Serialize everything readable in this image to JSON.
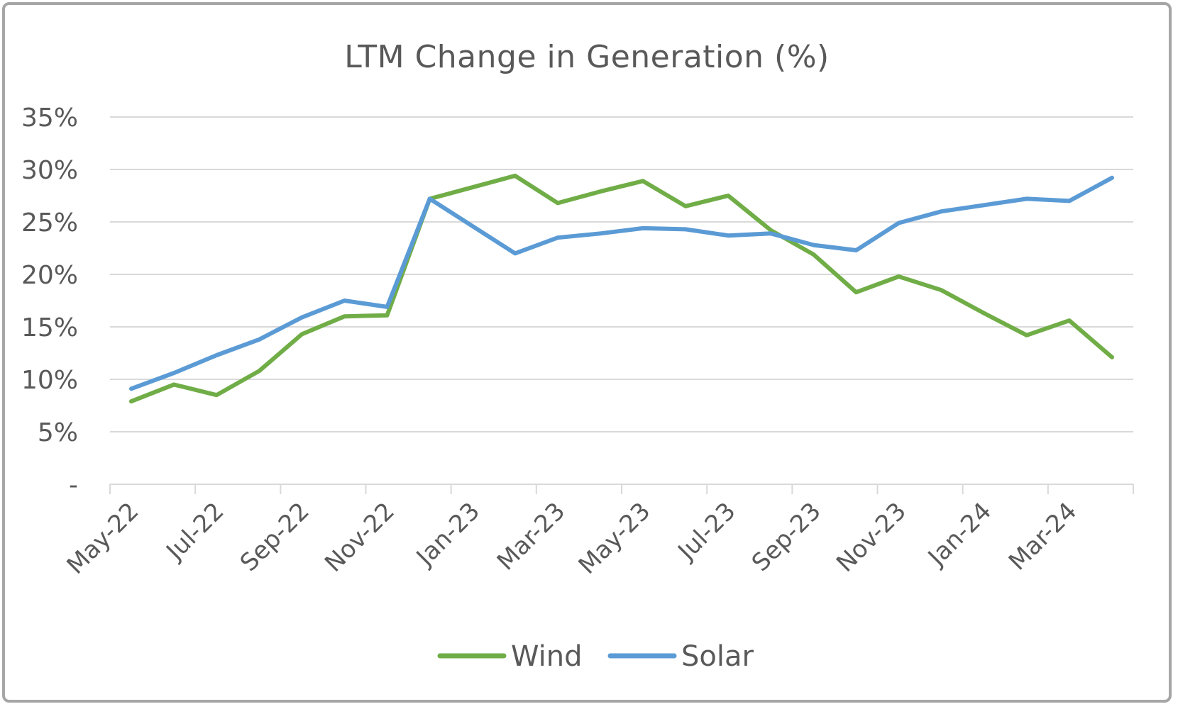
{
  "chart_data": {
    "type": "line",
    "title": "LTM Change in Generation (%)",
    "xlabel": "",
    "ylabel": "",
    "ylim": [
      0,
      35
    ],
    "y_ticks": [
      {
        "value": 0,
        "label": "-"
      },
      {
        "value": 5,
        "label": "5%"
      },
      {
        "value": 10,
        "label": "10%"
      },
      {
        "value": 15,
        "label": "15%"
      },
      {
        "value": 20,
        "label": "20%"
      },
      {
        "value": 25,
        "label": "25%"
      },
      {
        "value": 30,
        "label": "30%"
      },
      {
        "value": 35,
        "label": "35%"
      }
    ],
    "categories": [
      "May-22",
      "Jun-22",
      "Jul-22",
      "Aug-22",
      "Sep-22",
      "Oct-22",
      "Nov-22",
      "Dec-22",
      "Jan-23",
      "Feb-23",
      "Mar-23",
      "Apr-23",
      "May-23",
      "Jun-23",
      "Jul-23",
      "Aug-23",
      "Sep-23",
      "Oct-23",
      "Nov-23",
      "Dec-23",
      "Jan-24",
      "Feb-24",
      "Mar-24",
      "Apr-24"
    ],
    "x_tick_labels": [
      "May-22",
      "Jul-22",
      "Sep-22",
      "Nov-22",
      "Jan-23",
      "Mar-23",
      "May-23",
      "Jul-23",
      "Sep-23",
      "Nov-23",
      "Jan-24",
      "Mar-24"
    ],
    "series": [
      {
        "name": "Wind",
        "color": "#70ad47",
        "values": [
          7.9,
          9.5,
          8.5,
          10.8,
          14.3,
          16.0,
          16.1,
          27.2,
          28.3,
          29.4,
          26.8,
          27.9,
          28.9,
          26.5,
          27.5,
          24.2,
          21.9,
          18.3,
          19.8,
          18.5,
          16.3,
          14.2,
          15.6,
          12.1
        ]
      },
      {
        "name": "Solar",
        "color": "#5b9bd5",
        "values": [
          9.1,
          10.6,
          12.3,
          13.8,
          15.9,
          17.5,
          16.9,
          27.2,
          24.6,
          22.0,
          23.5,
          23.9,
          24.4,
          24.3,
          23.7,
          23.9,
          22.8,
          22.3,
          24.9,
          26.0,
          26.6,
          27.2,
          27.0,
          29.2
        ]
      }
    ],
    "grid": true,
    "legend": "bottom"
  }
}
